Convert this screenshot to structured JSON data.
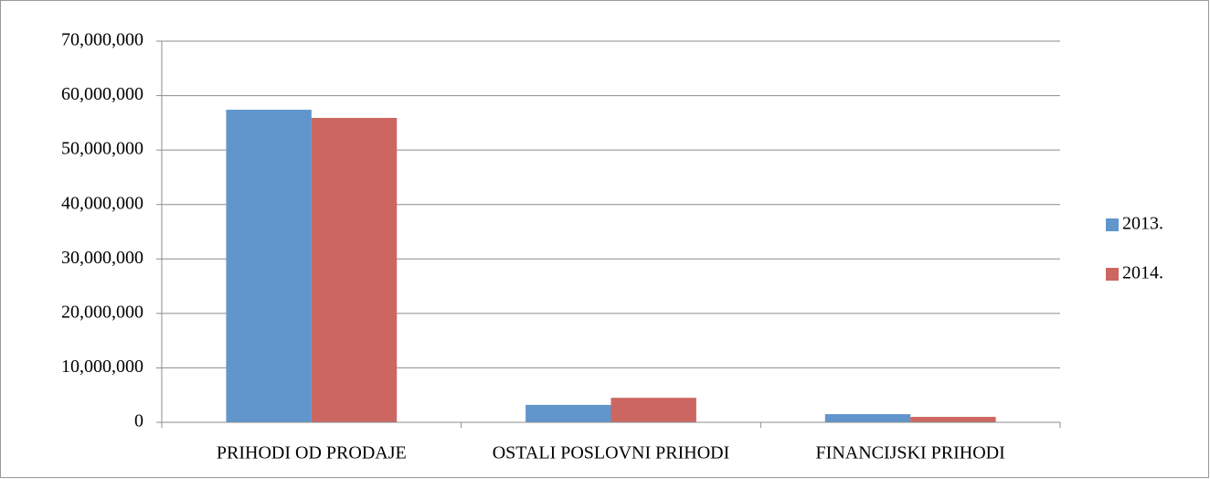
{
  "chart_data": {
    "type": "bar",
    "categories": [
      "PRIHODI OD PRODAJE",
      "OSTALI POSLOVNI PRIHODI",
      "FINANCIJSKI PRIHODI"
    ],
    "series": [
      {
        "name": "2013.",
        "color": "#6096cc",
        "values": [
          57400000,
          3200000,
          1500000
        ]
      },
      {
        "name": "2014.",
        "color": "#cc6660",
        "values": [
          55900000,
          4500000,
          1000000
        ]
      }
    ],
    "ylim": [
      0,
      70000000
    ],
    "yticks": [
      0,
      {
        "value": 10000000,
        "label": "10,000,000"
      },
      {
        "value": 20000000,
        "label": "20,000,000"
      },
      {
        "value": 30000000,
        "label": "30,000,000"
      },
      {
        "value": 40000000,
        "label": "40,000,000"
      },
      {
        "value": 50000000,
        "label": "50,000,000"
      },
      {
        "value": 60000000,
        "label": "60,000,000"
      },
      {
        "value": 70000000,
        "label": "70,000,000"
      }
    ],
    "grid": true,
    "legend": "right"
  }
}
